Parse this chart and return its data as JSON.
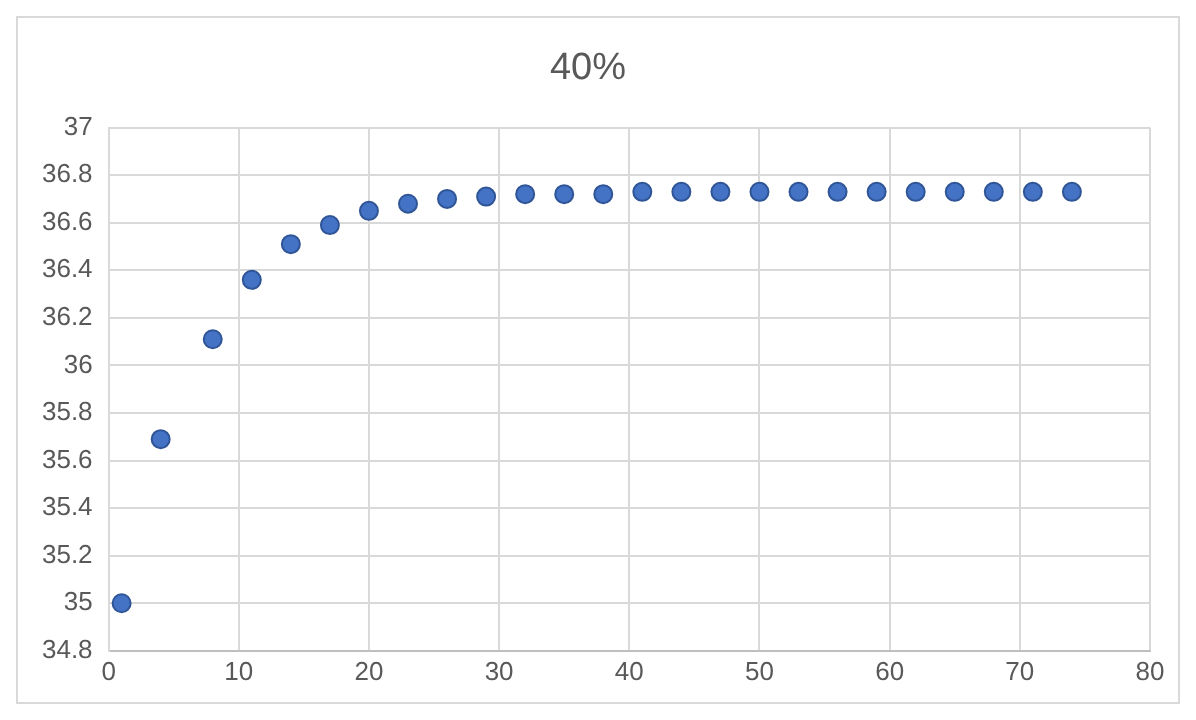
{
  "chart_data": {
    "type": "scatter",
    "title": "40%",
    "x": [
      1,
      4,
      8,
      11,
      14,
      17,
      20,
      23,
      26,
      29,
      32,
      35,
      38,
      41,
      44,
      47,
      50,
      53,
      56,
      59,
      62,
      65,
      68,
      71,
      74
    ],
    "series": [
      {
        "color": "#4472c4",
        "values": [
          35.0,
          35.69,
          36.11,
          36.36,
          36.51,
          36.59,
          36.65,
          36.68,
          36.7,
          36.71,
          36.72,
          36.72,
          36.72,
          36.73,
          36.73,
          36.73,
          36.73,
          36.73,
          36.73,
          36.73,
          36.73,
          36.73,
          36.73,
          36.73,
          36.73
        ]
      }
    ],
    "xlim": [
      0,
      80
    ],
    "xticks": [
      0,
      10,
      20,
      30,
      40,
      50,
      60,
      70,
      80
    ],
    "ylim": [
      34.8,
      37
    ],
    "yticks": [
      34.8,
      35,
      35.2,
      35.4,
      35.6,
      35.8,
      36,
      36.2,
      36.4,
      36.6,
      36.8,
      37
    ],
    "grid": true,
    "legend": false,
    "marker": "circle"
  }
}
